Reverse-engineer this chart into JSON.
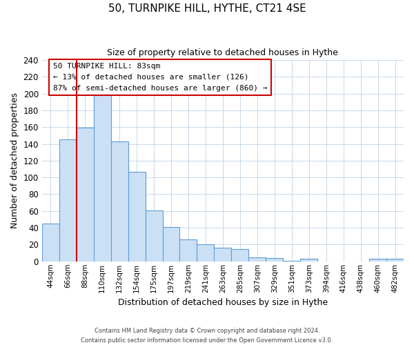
{
  "title": "50, TURNPIKE HILL, HYTHE, CT21 4SE",
  "subtitle": "Size of property relative to detached houses in Hythe",
  "xlabel": "Distribution of detached houses by size in Hythe",
  "ylabel": "Number of detached properties",
  "bar_labels": [
    "44sqm",
    "66sqm",
    "88sqm",
    "110sqm",
    "132sqm",
    "154sqm",
    "175sqm",
    "197sqm",
    "219sqm",
    "241sqm",
    "263sqm",
    "285sqm",
    "307sqm",
    "329sqm",
    "351sqm",
    "373sqm",
    "394sqm",
    "416sqm",
    "438sqm",
    "460sqm",
    "482sqm"
  ],
  "bar_values": [
    45,
    145,
    159,
    200,
    143,
    107,
    61,
    41,
    26,
    20,
    16,
    15,
    5,
    4,
    1,
    3,
    0,
    0,
    0,
    3,
    3
  ],
  "bar_color": "#cce0f5",
  "bar_edge_color": "#5b9bd5",
  "vline_color": "#cc0000",
  "vline_position": 1.5,
  "annotation_title": "50 TURNPIKE HILL: 83sqm",
  "annotation_line1": "← 13% of detached houses are smaller (126)",
  "annotation_line2": "87% of semi-detached houses are larger (860) →",
  "annotation_box_edge": "#cc0000",
  "ylim": [
    0,
    240
  ],
  "yticks": [
    0,
    20,
    40,
    60,
    80,
    100,
    120,
    140,
    160,
    180,
    200,
    220,
    240
  ],
  "footer_line1": "Contains HM Land Registry data © Crown copyright and database right 2024.",
  "footer_line2": "Contains public sector information licensed under the Open Government Licence v3.0.",
  "background_color": "#ffffff",
  "grid_color": "#c8d8e8"
}
